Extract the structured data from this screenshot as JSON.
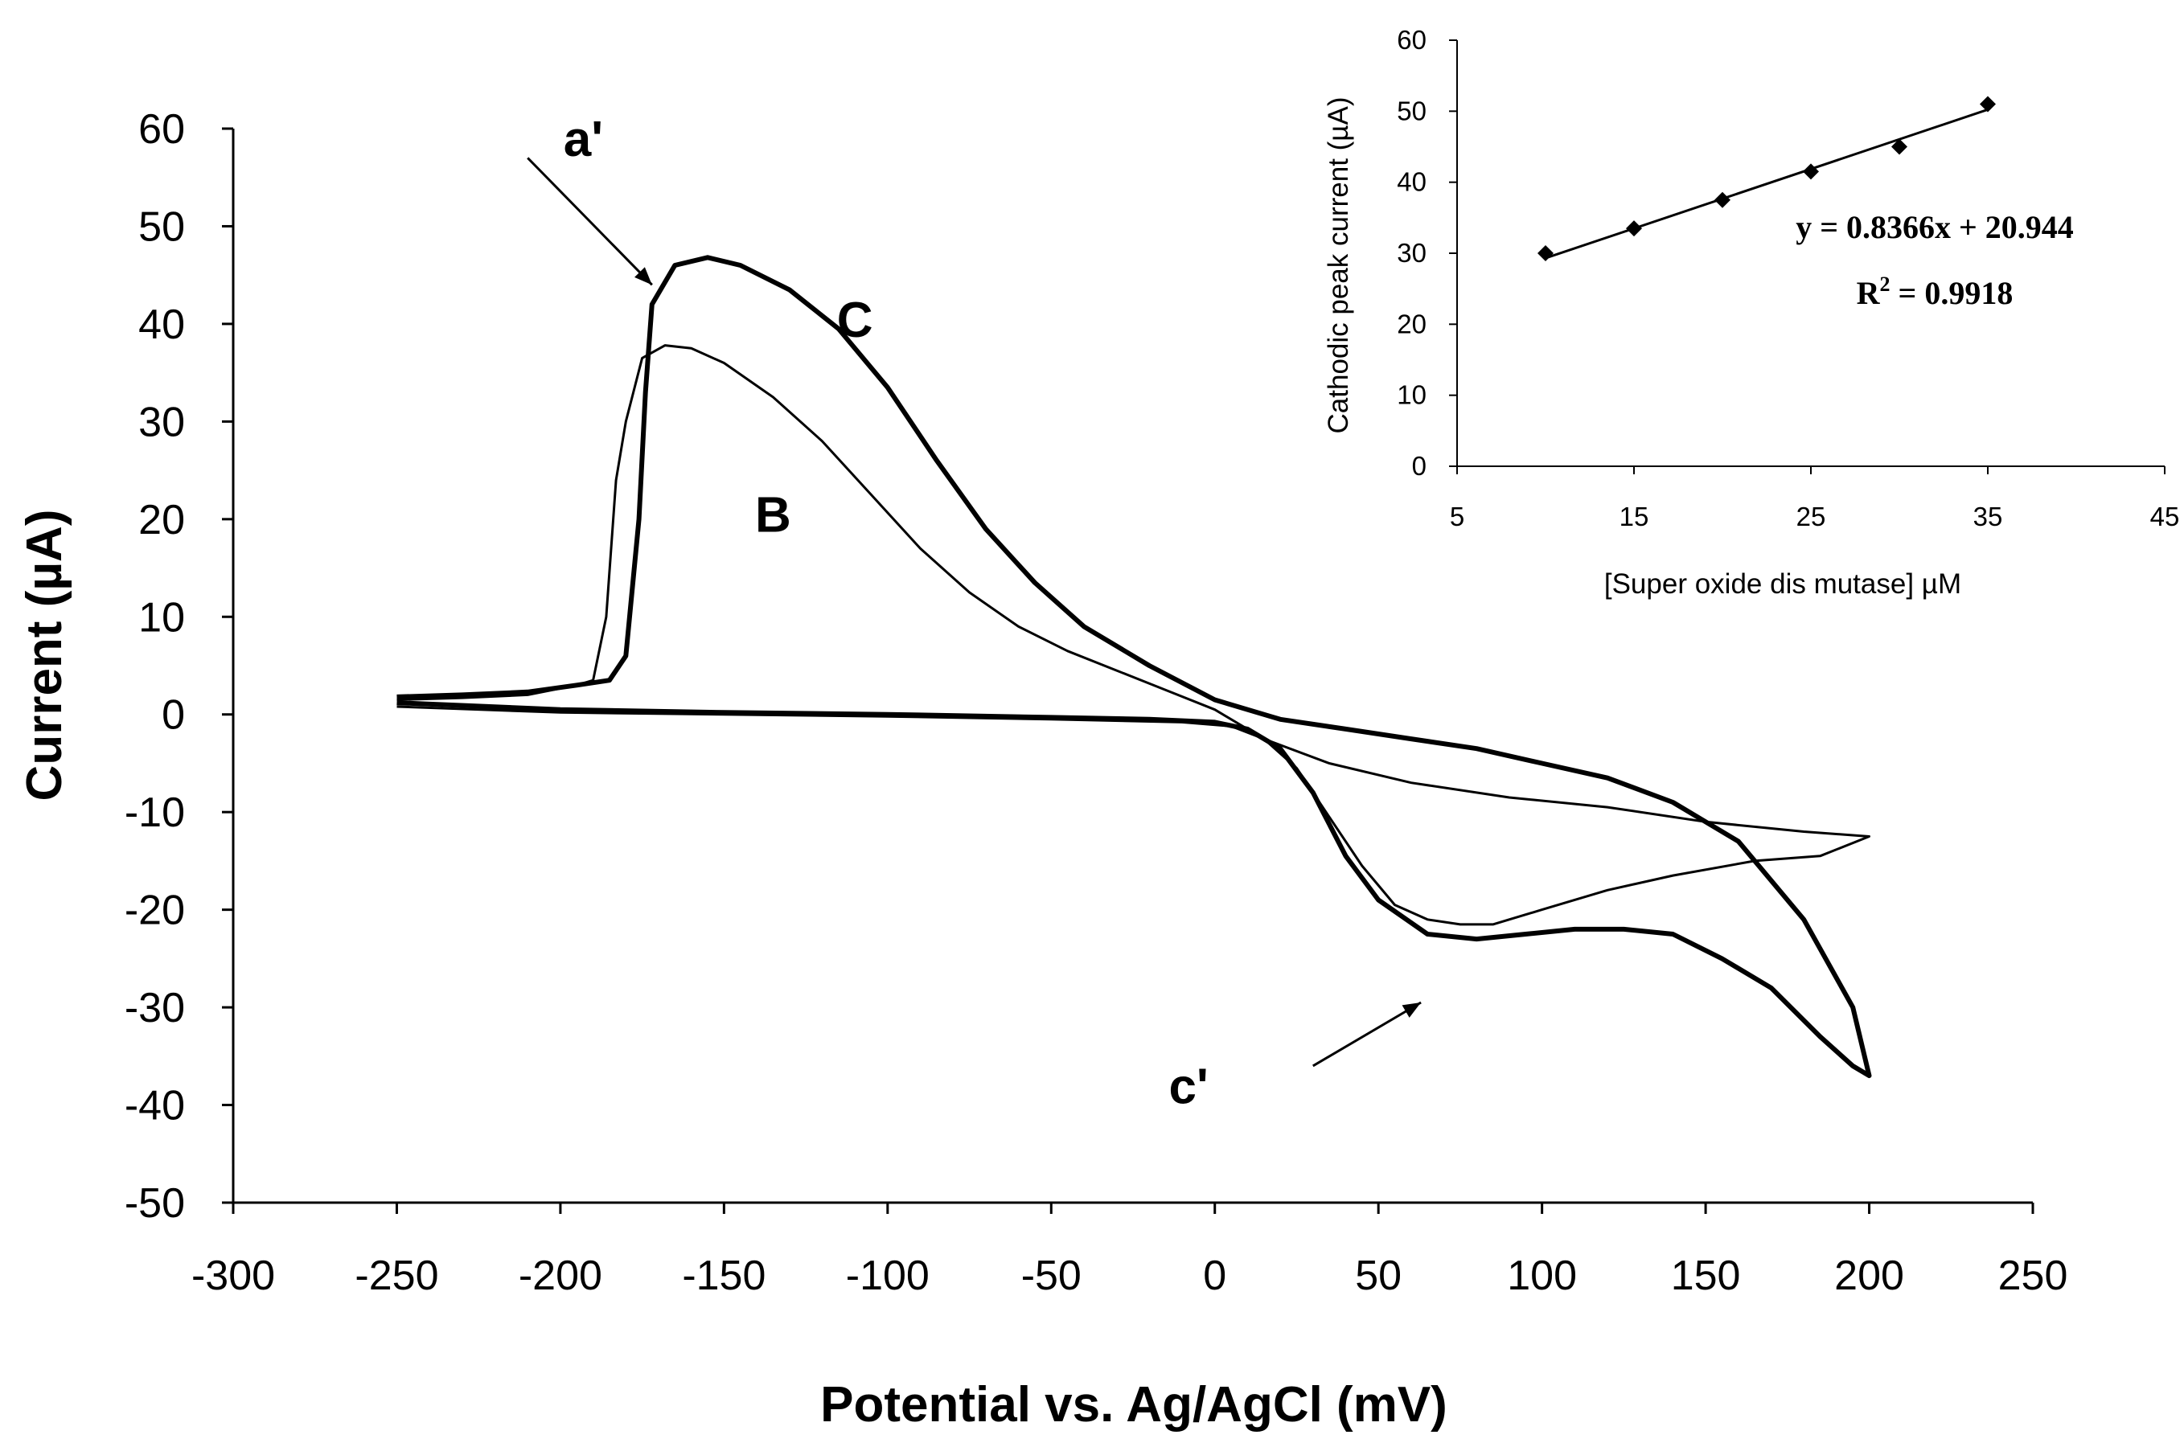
{
  "chart_data": [
    {
      "type": "line",
      "title": "",
      "xlabel": "Potential vs. Ag/AgCl (mV)",
      "ylabel": "Current (µA)",
      "xlim": [
        -300,
        250
      ],
      "ylim": [
        -50,
        60
      ],
      "xticks": [
        "-300",
        "-250",
        "-200",
        "-150",
        "-100",
        "-50",
        "0",
        "50",
        "100",
        "150",
        "200",
        "250"
      ],
      "yticks": [
        "60",
        "50",
        "40",
        "30",
        "20",
        "10",
        "0",
        "-10",
        "-20",
        "-30",
        "-40",
        "-50"
      ],
      "series": [
        {
          "name": "C",
          "x": [
            -250,
            -230,
            -210,
            -195,
            -185,
            -180,
            -176,
            -174,
            -172,
            -165,
            -155,
            -145,
            -130,
            -115,
            -100,
            -85,
            -70,
            -55,
            -40,
            -20,
            0,
            20,
            40,
            60,
            80,
            100,
            120,
            140,
            160,
            180,
            195,
            200,
            195,
            185,
            170,
            155,
            140,
            125,
            110,
            95,
            80,
            65,
            50,
            40,
            30,
            20,
            10,
            0,
            -20,
            -50,
            -100,
            -150,
            -200,
            -250
          ],
          "y": [
            1.8,
            2.0,
            2.3,
            3.0,
            3.5,
            6,
            20,
            33,
            42,
            46,
            46.8,
            46,
            43.5,
            39.5,
            33.5,
            26,
            19,
            13.5,
            9,
            5,
            1.5,
            -0.5,
            -1.5,
            -2.5,
            -3.5,
            -5,
            -6.5,
            -9,
            -13,
            -21,
            -30,
            -37,
            -36,
            -33,
            -28,
            -25,
            -22.5,
            -22,
            -22,
            -22.5,
            -23,
            -22.5,
            -19,
            -14.5,
            -8,
            -3.5,
            -1.5,
            -0.8,
            -0.5,
            -0.3,
            0,
            0.2,
            0.5,
            1.2
          ]
        },
        {
          "name": "B",
          "x": [
            -250,
            -230,
            -210,
            -195,
            -190,
            -186,
            -183,
            -180,
            -175,
            -168,
            -160,
            -150,
            -135,
            -120,
            -105,
            -90,
            -75,
            -60,
            -45,
            -30,
            -15,
            0,
            15,
            35,
            60,
            90,
            120,
            150,
            180,
            200,
            185,
            165,
            140,
            120,
            100,
            85,
            75,
            65,
            55,
            45,
            35,
            25,
            15,
            5,
            -10,
            -50,
            -100,
            -150,
            -200,
            -250
          ],
          "y": [
            1.5,
            1.7,
            2.0,
            3.0,
            3.5,
            10,
            24,
            30,
            36.5,
            37.8,
            37.5,
            36,
            32.5,
            28,
            22.5,
            17,
            12.5,
            9,
            6.5,
            4.5,
            2.5,
            0.5,
            -2.5,
            -5,
            -7,
            -8.5,
            -9.5,
            -11,
            -12,
            -12.5,
            -14.5,
            -15,
            -16.5,
            -18,
            -20,
            -21.5,
            -21.5,
            -21,
            -19.5,
            -15.5,
            -10.5,
            -5.5,
            -2.5,
            -1.2,
            -0.8,
            -0.5,
            -0.2,
            0,
            0.2,
            0.8
          ]
        }
      ],
      "annotations": [
        {
          "text": "a'",
          "arrow_from": [
            -210,
            57
          ],
          "arrow_to": [
            -172,
            44
          ]
        },
        {
          "text": "C",
          "at": [
            -110,
            40.5
          ]
        },
        {
          "text": "B",
          "at": [
            -135,
            20.5
          ]
        },
        {
          "text": "c'",
          "at": [
            -8,
            -38
          ],
          "arrow_from": [
            30,
            -36
          ],
          "arrow_to": [
            63,
            -29.5
          ]
        }
      ]
    },
    {
      "type": "scatter",
      "title": "",
      "xlabel": "[Super oxide dis mutase] µM",
      "ylabel": "Cathodic peak current (µA)",
      "xlim": [
        5,
        45
      ],
      "ylim": [
        0,
        60
      ],
      "xticks": [
        "5",
        "15",
        "25",
        "35",
        "45"
      ],
      "yticks": [
        "60",
        "50",
        "40",
        "30",
        "20",
        "10",
        "0"
      ],
      "x": [
        10,
        15,
        20,
        25,
        30,
        35
      ],
      "y": [
        30,
        33.5,
        37.5,
        41.5,
        45,
        51
      ],
      "trendline": {
        "slope": 0.8366,
        "intercept": 20.944,
        "x_range": [
          10,
          35
        ]
      },
      "equation_text": "y = 0.8366x + 20.944",
      "r2_prefix": "R",
      "r2_sup": "2",
      "r2_value": " = 0.9918"
    }
  ]
}
